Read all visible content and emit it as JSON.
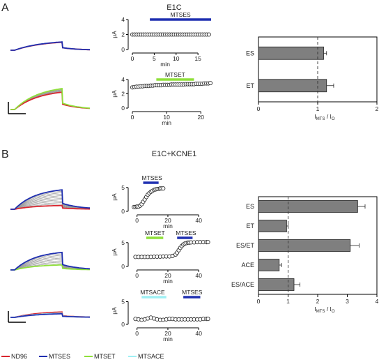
{
  "panels": {
    "a": {
      "letter": "A",
      "condition": "E1C"
    },
    "b": {
      "letter": "B",
      "condition": "E1C+KCNE1"
    }
  },
  "legend": [
    {
      "label": "ND96",
      "color": "#d9262f"
    },
    {
      "label": "MTSES",
      "color": "#1f2fb0"
    },
    {
      "label": "MTSET",
      "color": "#8fe03a"
    },
    {
      "label": "MTSACE",
      "color": "#9ff0f4"
    }
  ],
  "chart_data": [
    {
      "type": "scatter",
      "panel": "A-top",
      "ylabel": "μA",
      "xlabel": "min",
      "xlim": [
        0,
        18
      ],
      "ylim": [
        0,
        4
      ],
      "xticks": [
        0,
        5,
        10,
        15
      ],
      "yticks": [
        0,
        2,
        4
      ],
      "series": [
        {
          "x": [
            0,
            0.5,
            1,
            1.5,
            2,
            2.5,
            3,
            3.5,
            4,
            4.5,
            5,
            5.5,
            6,
            6.5,
            7,
            7.5,
            8,
            8.5,
            9,
            9.5,
            10,
            10.5,
            11,
            11.5,
            12,
            12.5,
            13,
            13.5,
            14,
            14.5,
            15,
            15.5,
            16,
            16.5,
            17,
            17.5
          ],
          "values": [
            2,
            2,
            2,
            2,
            2,
            2,
            2,
            2,
            2,
            2,
            2,
            2,
            2,
            2,
            2,
            2,
            2,
            2,
            2,
            2,
            2,
            2,
            2,
            2,
            2,
            2,
            2,
            2,
            2,
            2,
            2,
            2,
            2,
            2,
            2,
            2
          ]
        }
      ],
      "application": {
        "label": "MTSES",
        "color": "#1f2fb0",
        "start": 4,
        "end": 18
      }
    },
    {
      "type": "scatter",
      "panel": "A-bottom",
      "ylabel": "μA",
      "xlabel": "min",
      "xlim": [
        0,
        23
      ],
      "ylim": [
        0,
        4
      ],
      "xticks": [
        0,
        10,
        20
      ],
      "yticks": [
        0,
        2,
        4
      ],
      "series": [
        {
          "x": [
            0,
            0.6,
            1.2,
            1.8,
            2.4,
            3,
            3.6,
            4.2,
            4.8,
            5.4,
            6,
            6.6,
            7.2,
            7.8,
            8.4,
            9,
            9.6,
            10.2,
            10.8,
            11.4,
            12,
            12.6,
            13.2,
            13.8,
            14.4,
            15,
            15.6,
            16.2,
            16.8,
            17.4,
            18,
            18.6,
            19.2,
            19.8,
            20.4,
            21,
            21.6,
            22.2,
            22.8
          ],
          "values": [
            2.9,
            2.95,
            3,
            3,
            3.05,
            3.05,
            3.1,
            3.1,
            3.1,
            3.15,
            3.15,
            3.2,
            3.2,
            3.2,
            3.2,
            3.25,
            3.25,
            3.25,
            3.25,
            3.3,
            3.3,
            3.3,
            3.3,
            3.3,
            3.3,
            3.3,
            3.35,
            3.35,
            3.35,
            3.35,
            3.35,
            3.4,
            3.4,
            3.4,
            3.4,
            3.45,
            3.45,
            3.45,
            3.5
          ]
        }
      ],
      "application": {
        "label": "MTSET",
        "color": "#8fe03a",
        "start": 7,
        "end": 18
      }
    },
    {
      "type": "bar",
      "panel": "A-bars",
      "orientation": "horizontal",
      "categories": [
        "ES",
        "ET"
      ],
      "values": [
        1.1,
        1.15
      ],
      "errors": [
        0.05,
        0.12
      ],
      "xlim": [
        0,
        2
      ],
      "xticks": [
        0,
        1,
        2
      ],
      "reference_line": 1,
      "xlabel": "IMTS / I0"
    },
    {
      "type": "scatter",
      "panel": "B-1",
      "ylabel": "μA",
      "xlabel": "min",
      "xlim": [
        -3,
        48
      ],
      "ylim": [
        0,
        6
      ],
      "xticks": [
        0,
        20,
        40
      ],
      "yticks": [
        0,
        5
      ],
      "series": [
        {
          "x": [
            -2,
            -1,
            0,
            1,
            2,
            3,
            4,
            5,
            6,
            7,
            8,
            9,
            10,
            11,
            12,
            13,
            14,
            15,
            16,
            17
          ],
          "values": [
            0.9,
            0.9,
            1,
            1,
            1.2,
            1.5,
            2,
            2.5,
            3,
            3.5,
            3.8,
            4.1,
            4.3,
            4.5,
            4.6,
            4.7,
            4.7,
            4.8,
            4.8,
            4.8
          ]
        }
      ],
      "application": {
        "label": "MTSES",
        "color": "#1f2fb0",
        "start": 4,
        "end": 14
      }
    },
    {
      "type": "scatter",
      "panel": "B-2",
      "ylabel": "μA",
      "xlabel": "min",
      "xlim": [
        -3,
        48
      ],
      "ylim": [
        0,
        6
      ],
      "xticks": [
        0,
        20,
        40
      ],
      "yticks": [
        0,
        5
      ],
      "series": [
        {
          "x": [
            -1,
            1,
            3,
            5,
            7,
            9,
            11,
            13,
            15,
            17,
            19,
            21,
            23,
            25,
            26,
            27,
            28,
            29,
            30,
            31,
            32,
            33,
            34,
            35,
            37,
            39,
            41,
            43,
            45,
            46
          ],
          "values": [
            2,
            2,
            2,
            2,
            2,
            2,
            2.05,
            2.05,
            2.05,
            2.1,
            2.1,
            2.1,
            2.2,
            2.5,
            2.9,
            3.4,
            3.9,
            4.3,
            4.6,
            4.8,
            4.9,
            5,
            5,
            5.05,
            5.05,
            5.1,
            5.1,
            5.1,
            5.1,
            5.1
          ]
        }
      ],
      "application": {
        "label": "MTSET",
        "color": "#8fe03a",
        "start": 6,
        "end": 17
      },
      "application2": {
        "label": "MTSES",
        "color": "#1f2fb0",
        "start": 26,
        "end": 36
      }
    },
    {
      "type": "scatter",
      "panel": "B-3",
      "ylabel": "μA",
      "xlabel": "min",
      "xlim": [
        -3,
        48
      ],
      "ylim": [
        0,
        6
      ],
      "xticks": [
        0,
        20,
        40
      ],
      "yticks": [
        0,
        5
      ],
      "series": [
        {
          "x": [
            -1,
            1,
            3,
            5,
            7,
            9,
            11,
            13,
            15,
            17,
            19,
            21,
            23,
            25,
            27,
            29,
            31,
            33,
            35,
            37,
            39,
            41,
            43,
            45,
            46
          ],
          "values": [
            1.2,
            1.1,
            1,
            1.1,
            1.3,
            1.5,
            1.3,
            1.1,
            1,
            1,
            1.1,
            1.2,
            1.2,
            1.1,
            1.1,
            1.1,
            1.1,
            1.1,
            1.1,
            1.1,
            1.1,
            1.1,
            1.2,
            1.2,
            1.2
          ]
        }
      ],
      "application": {
        "label": "MTSACE",
        "color": "#9ff0f4",
        "start": 3,
        "end": 19
      },
      "application2": {
        "label": "MTSES",
        "color": "#1f2fb0",
        "start": 30,
        "end": 41
      }
    },
    {
      "type": "bar",
      "panel": "B-bars",
      "orientation": "horizontal",
      "categories": [
        "ES",
        "ET",
        "ES/ET",
        "ACE",
        "ES/ACE"
      ],
      "values": [
        3.35,
        0.95,
        3.1,
        0.7,
        1.2
      ],
      "errors": [
        0.25,
        0.05,
        0.3,
        0.08,
        0.2
      ],
      "xlim": [
        0,
        4
      ],
      "xticks": [
        0,
        1,
        2,
        3,
        4
      ],
      "reference_line": 1,
      "xlabel": "IMTS / I0"
    }
  ]
}
